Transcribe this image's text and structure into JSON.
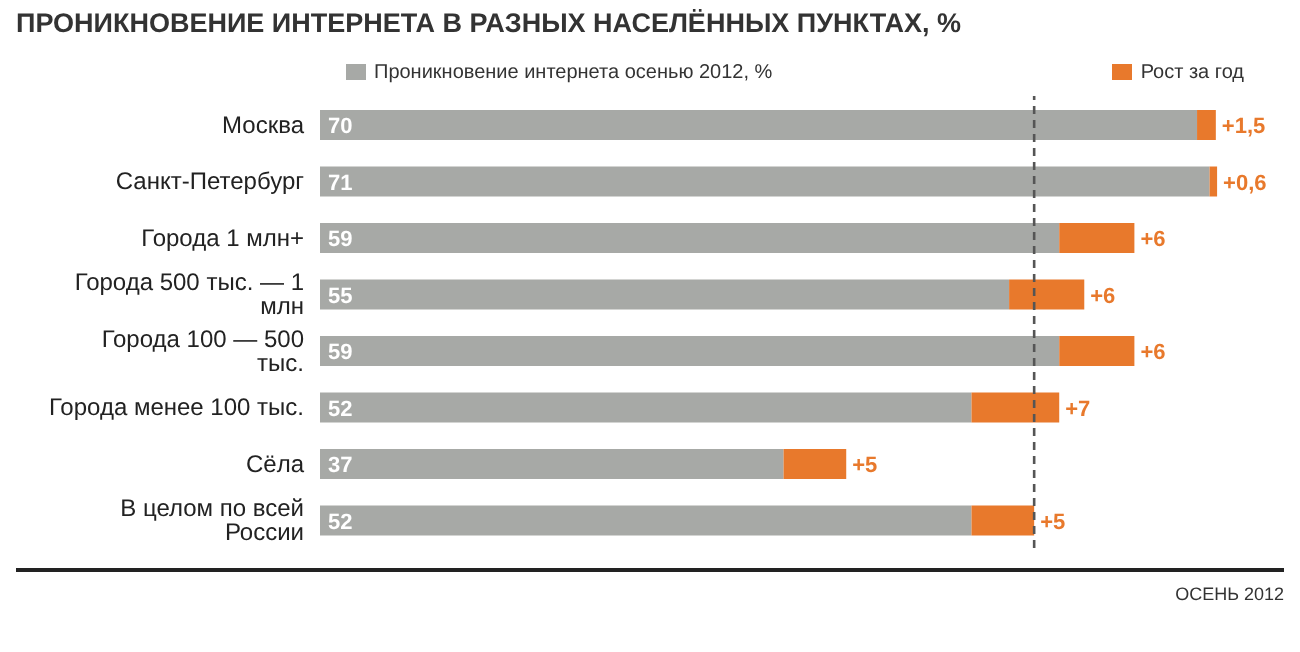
{
  "chart_data": {
    "type": "bar",
    "orientation": "horizontal",
    "stacked": true,
    "title": "ПРОНИКНОВЕНИЕ ИНТЕРНЕТА В РАЗНЫХ НАСЕЛЁННЫХ ПУНКТАХ, %",
    "categories": [
      "Москва",
      "Санкт-Петербург",
      "Города 1 млн+",
      "Города 500 тыс. — 1 млн",
      "Города 100 — 500 тыс.",
      "Города менее 100 тыс.",
      "Сёла",
      "В целом по всей России"
    ],
    "series": [
      {
        "name": "Проникновение интернета осенью 2012, %",
        "color": "#a7a9a6",
        "values": [
          70,
          71,
          59,
          55,
          59,
          52,
          37,
          52
        ],
        "value_labels": [
          "70",
          "71",
          "59",
          "55",
          "59",
          "52",
          "37",
          "52"
        ]
      },
      {
        "name": "Рост за год",
        "color": "#e8792c",
        "values": [
          1.5,
          0.6,
          6,
          6,
          6,
          7,
          5,
          5
        ],
        "value_labels": [
          "+1,5",
          "+0,6",
          "+6",
          "+6",
          "+6",
          "+7",
          "+5",
          "+5"
        ]
      }
    ],
    "ref_lines": [
      {
        "axis": "x",
        "value": 57,
        "color": "#555555",
        "line_style": "dashed"
      }
    ],
    "legend": "top",
    "annotations": [
      "ОСЕНЬ 2012"
    ]
  }
}
